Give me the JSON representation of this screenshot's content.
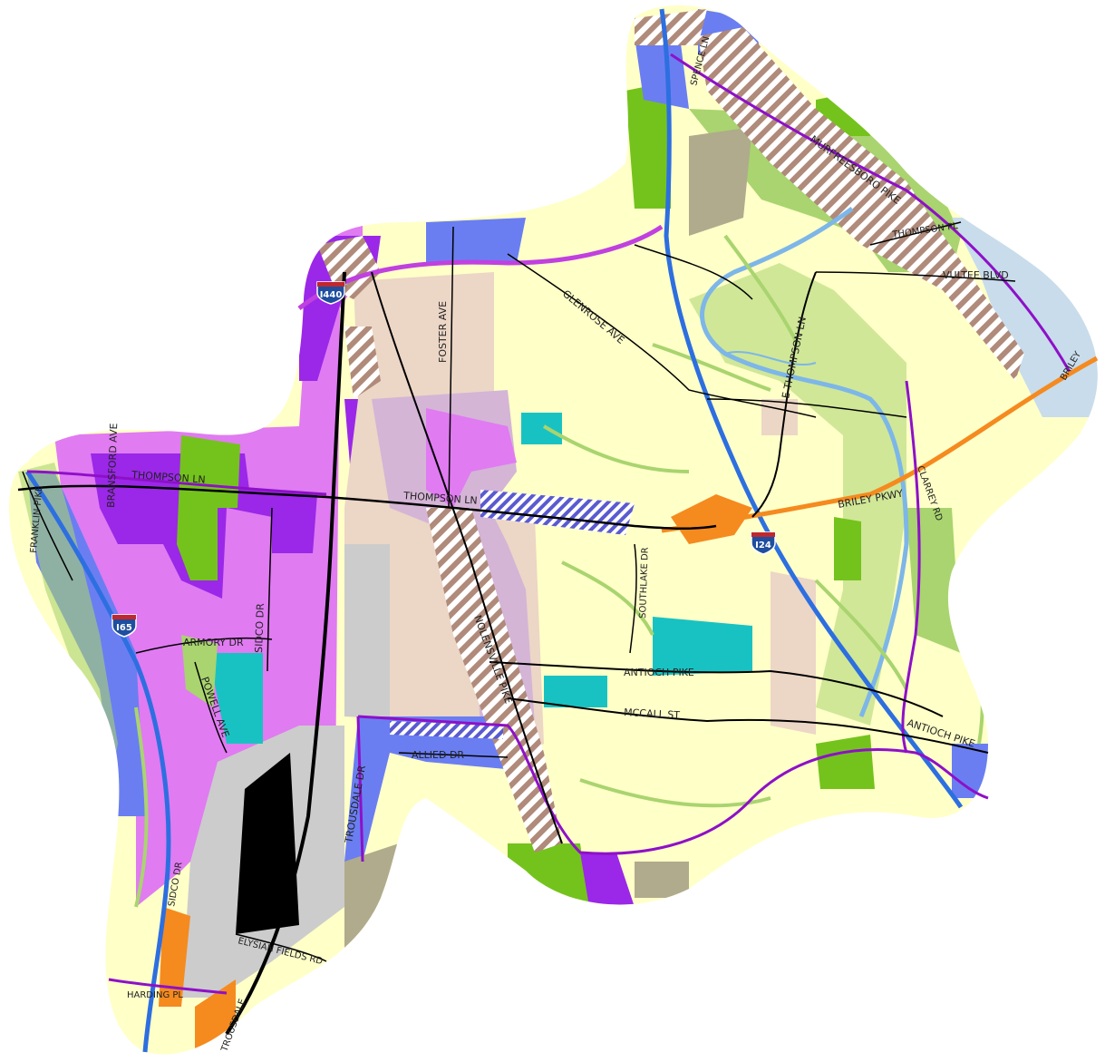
{
  "map": {
    "colors": {
      "residential_light": "#ffffc8",
      "greenway": "#a9d46f",
      "park": "#74c31d",
      "industrial_heavy": "#9b27e8",
      "industrial_light": "#e07bf2",
      "commercial": "#6a7ef2",
      "mixed_tan": "#ecd6c6",
      "mixed_mauve": "#d4b5d6",
      "civic_cyan": "#19c2c2",
      "orange": "#f58a1f",
      "gray_rail": "#cccccc",
      "olive": "#b0ab8c",
      "water": "#7db6e8",
      "light_blue": "#c8dcec",
      "interstate": "#2d6fe0",
      "arterial_purple": "#8e10c8",
      "road": "#000000"
    },
    "road_labels": {
      "thompson_ln_w": "THOMPSON LN",
      "thompson_ln_c": "THOMPSON LN",
      "bransford_ave": "BRANSFORD AVE",
      "franklin_pike": "FRANKLIN PIKE",
      "armory_dr": "ARMORY DR",
      "sidco_dr": "SIDCO DR",
      "powell_ave": "POWELL AVE",
      "foster_ave": "FOSTER AVE",
      "glenrose_ave": "GLENROSE AVE",
      "nolensville_pike": "NOLENSVILLE PIKE",
      "southlake_dr": "SOUTHLAKE DR",
      "antioch_pike_w": "ANTIOCH PIKE",
      "antioch_pike_e": "ANTIOCH PIKE",
      "mccall_st": "MCCALL ST",
      "allied_dr": "ALLIED DR",
      "trousdale_dr": "TROUSDALE DR",
      "trousdale_dr_s": "TROUSDALE",
      "elysian_fields_rd": "ELYSIAN FIELDS RD",
      "harding_pl": "HARDING PL",
      "sidco_s": "SIDCO DR",
      "murfreesboro_pike": "MURFREESBORO PIKE",
      "thompson_pl": "THOMPSON PL",
      "vultee_blvd": "VULTEE BLVD",
      "e_thompson_ln": "E THOMPSON LN",
      "briley_pkwy": "BRILEY PKWY",
      "briley_ne": "BRILEY",
      "mcgavock": "CLARREY RD",
      "spence_ln": "SPENCE LN"
    },
    "shields": {
      "i440": "I440",
      "i65": "I65",
      "i24": "I24"
    }
  }
}
